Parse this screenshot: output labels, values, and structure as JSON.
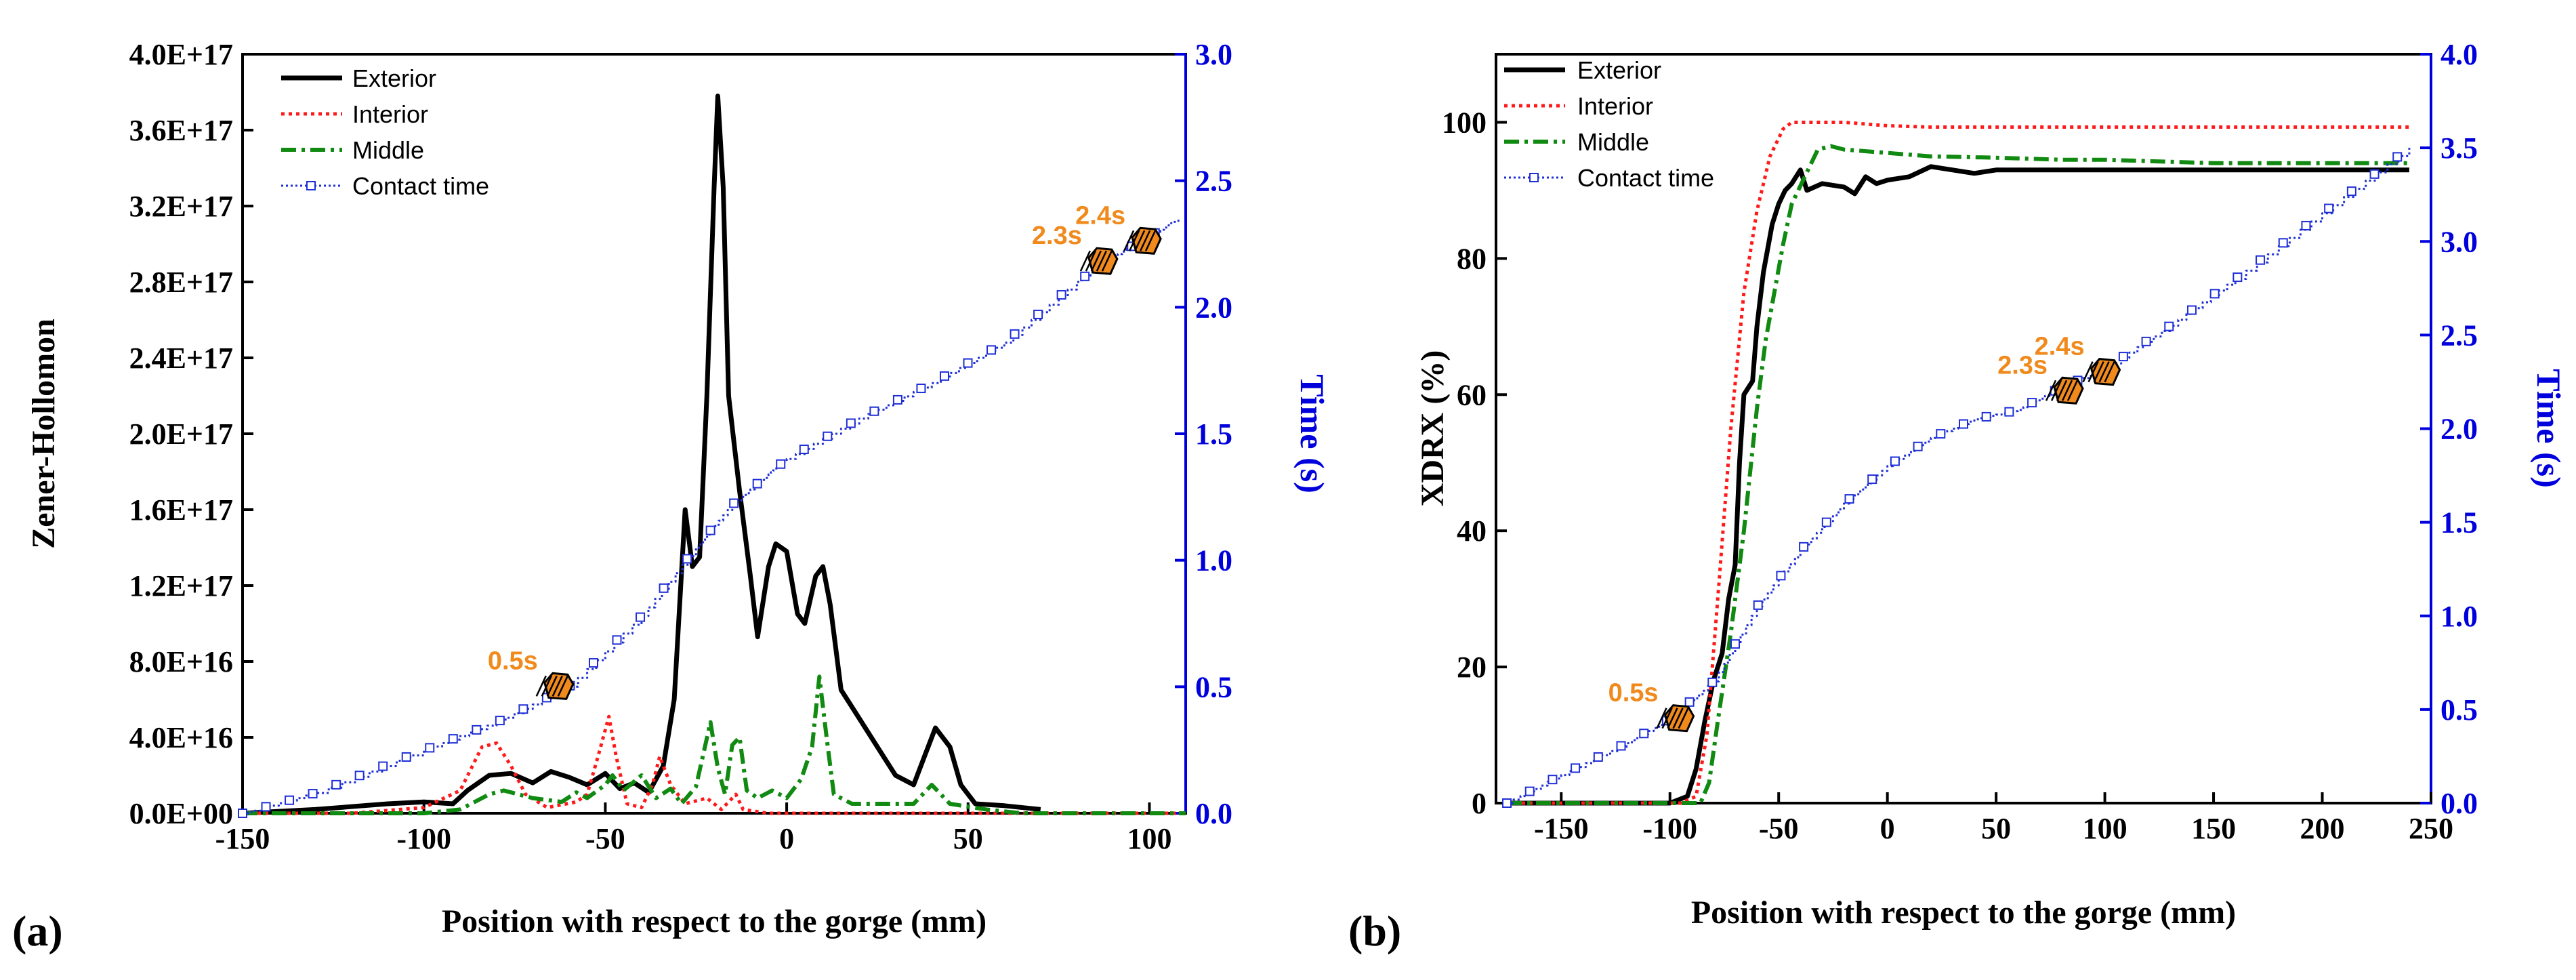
{
  "colors": {
    "exterior": "#000000",
    "interior": "#ff1a1a",
    "middle": "#108a10",
    "contact": "#1f2fd6",
    "right_axis": "#0000dd",
    "annotation": "#f08a1c"
  },
  "chart_data": [
    {
      "type": "line",
      "panel_label": "(a)",
      "title": "",
      "xlabel": "Position with respect to the gorge (mm)",
      "ylabel": "Zener-Hollomon",
      "y2label": "Time (s)",
      "xlim": [
        -150,
        110
      ],
      "ylim": [
        0,
        4e+17
      ],
      "y2lim": [
        0,
        3.0
      ],
      "xticks": [
        -150,
        -100,
        -50,
        0,
        50,
        100
      ],
      "xtick_labels": [
        "-150",
        "-100",
        "-50",
        "0",
        "50",
        "100"
      ],
      "yticks": [
        0,
        4e+16,
        8e+16,
        1.2e+17,
        1.6e+17,
        2e+17,
        2.4e+17,
        2.8e+17,
        3.2e+17,
        3.6e+17,
        4e+17
      ],
      "ytick_labels": [
        "0.0E+00",
        "4.0E+16",
        "8.0E+16",
        "1.2E+17",
        "1.6E+17",
        "2.0E+17",
        "2.4E+17",
        "2.8E+17",
        "3.2E+17",
        "3.6E+17",
        "4.0E+17"
      ],
      "y2ticks": [
        0,
        0.5,
        1.0,
        1.5,
        2.0,
        2.5,
        3.0
      ],
      "y2tick_labels": [
        "0.0",
        "0.5",
        "1.0",
        "1.5",
        "2.0",
        "2.5",
        "3.0"
      ],
      "grid": false,
      "legend_position": "top-left",
      "series": [
        {
          "name": "Exterior",
          "style": "solid",
          "axis": "left",
          "points": [
            [
              -150,
              0
            ],
            [
              -130,
              2000000000000000.0
            ],
            [
              -110,
              5000000000000000.0
            ],
            [
              -100,
              6000000000000000.0
            ],
            [
              -92,
              5000000000000000.0
            ],
            [
              -88,
              1.2e+16
            ],
            [
              -82,
              2e+16
            ],
            [
              -76,
              2.1e+16
            ],
            [
              -70,
              1.6e+16
            ],
            [
              -65,
              2.2e+16
            ],
            [
              -60,
              1.9e+16
            ],
            [
              -55,
              1.5e+16
            ],
            [
              -50,
              2.1e+16
            ],
            [
              -46,
              1.3e+16
            ],
            [
              -42,
              1.6e+16
            ],
            [
              -38,
              1.1e+16
            ],
            [
              -34,
              2.5e+16
            ],
            [
              -31,
              6e+16
            ],
            [
              -28,
              1.6e+17
            ],
            [
              -26,
              1.3e+17
            ],
            [
              -24,
              1.35e+17
            ],
            [
              -22,
              2.2e+17
            ],
            [
              -20,
              3.3e+17
            ],
            [
              -19,
              3.78e+17
            ],
            [
              -17.5,
              3.3e+17
            ],
            [
              -16,
              2.2e+17
            ],
            [
              -13,
              1.7e+17
            ],
            [
              -10,
              1.25e+17
            ],
            [
              -8,
              9.3e+16
            ],
            [
              -5,
              1.3e+17
            ],
            [
              -3,
              1.42e+17
            ],
            [
              0,
              1.38e+17
            ],
            [
              3,
              1.05e+17
            ],
            [
              5,
              1e+17
            ],
            [
              8,
              1.25e+17
            ],
            [
              10,
              1.3e+17
            ],
            [
              12,
              1.1e+17
            ],
            [
              15,
              6.5e+16
            ],
            [
              20,
              5e+16
            ],
            [
              25,
              3.5e+16
            ],
            [
              30,
              2e+16
            ],
            [
              35,
              1.5e+16
            ],
            [
              38,
              3e+16
            ],
            [
              41,
              4.5e+16
            ],
            [
              45,
              3.5e+16
            ],
            [
              48,
              1.5e+16
            ],
            [
              52,
              5000000000000000.0
            ],
            [
              60,
              4000000000000000.0
            ],
            [
              70,
              2000000000000000.0
            ]
          ]
        },
        {
          "name": "Interior",
          "style": "dotted",
          "axis": "left",
          "points": [
            [
              -150,
              0
            ],
            [
              -120,
              0
            ],
            [
              -100,
              3000000000000000.0
            ],
            [
              -90,
              1.2e+16
            ],
            [
              -84,
              3.5e+16
            ],
            [
              -80,
              3.7e+16
            ],
            [
              -76,
              2.5e+16
            ],
            [
              -72,
              1e+16
            ],
            [
              -66,
              3000000000000000.0
            ],
            [
              -58,
              6000000000000000.0
            ],
            [
              -55,
              1e+16
            ],
            [
              -52,
              3e+16
            ],
            [
              -49,
              5.1e+16
            ],
            [
              -47,
              3e+16
            ],
            [
              -44,
              5000000000000000.0
            ],
            [
              -40,
              3000000000000000.0
            ],
            [
              -37,
              1.5e+16
            ],
            [
              -35,
              3e+16
            ],
            [
              -32,
              1.5e+16
            ],
            [
              -28,
              5000000000000000.0
            ],
            [
              -22,
              8000000000000000.0
            ],
            [
              -18,
              2000000000000000.0
            ],
            [
              -14,
              1e+16
            ],
            [
              -12,
              2000000000000000.0
            ],
            [
              -5,
              0
            ],
            [
              20,
              0
            ],
            [
              110,
              0
            ]
          ]
        },
        {
          "name": "Middle",
          "style": "dashdot",
          "axis": "left",
          "points": [
            [
              -150,
              0
            ],
            [
              -100,
              0
            ],
            [
              -90,
              2000000000000000.0
            ],
            [
              -82,
              1e+16
            ],
            [
              -78,
              1.2e+16
            ],
            [
              -70,
              8000000000000000.0
            ],
            [
              -62,
              6000000000000000.0
            ],
            [
              -58,
              1.1e+16
            ],
            [
              -55,
              8000000000000000.0
            ],
            [
              -50,
              1.5e+16
            ],
            [
              -48,
              2e+16
            ],
            [
              -45,
              1.2e+16
            ],
            [
              -40,
              2e+16
            ],
            [
              -36,
              8000000000000000.0
            ],
            [
              -32,
              1.3e+16
            ],
            [
              -29,
              5000000000000000.0
            ],
            [
              -25,
              1.4e+16
            ],
            [
              -21,
              4.8e+16
            ],
            [
              -19,
              2.4e+16
            ],
            [
              -17,
              1e+16
            ],
            [
              -15,
              3.6e+16
            ],
            [
              -13,
              4e+16
            ],
            [
              -11,
              1.2e+16
            ],
            [
              -8,
              8000000000000000.0
            ],
            [
              -4,
              1.2e+16
            ],
            [
              0,
              8000000000000000.0
            ],
            [
              4,
              1.8e+16
            ],
            [
              7,
              3.5e+16
            ],
            [
              9,
              7.2e+16
            ],
            [
              11,
              4e+16
            ],
            [
              13,
              1e+16
            ],
            [
              18,
              5000000000000000.0
            ],
            [
              25,
              5000000000000000.0
            ],
            [
              35,
              5000000000000000.0
            ],
            [
              40,
              1.5e+16
            ],
            [
              45,
              5000000000000000.0
            ],
            [
              55,
              2000000000000000.0
            ],
            [
              65,
              0
            ],
            [
              110,
              0
            ]
          ]
        },
        {
          "name": "Contact time",
          "style": "step-markers",
          "axis": "right",
          "points": [
            [
              -150,
              0
            ],
            [
              -130,
              0.08
            ],
            [
              -100,
              0.25
            ],
            [
              -80,
              0.36
            ],
            [
              -60,
              0.5
            ],
            [
              -40,
              0.78
            ],
            [
              -25,
              1.05
            ],
            [
              -15,
              1.22
            ],
            [
              -5,
              1.34
            ],
            [
              0,
              1.4
            ],
            [
              20,
              1.56
            ],
            [
              40,
              1.7
            ],
            [
              60,
              1.86
            ],
            [
              80,
              2.1
            ],
            [
              90,
              2.2
            ],
            [
              100,
              2.28
            ],
            [
              108,
              2.35
            ]
          ]
        }
      ],
      "annotations": [
        {
          "text": "0.5s",
          "x": -63,
          "y2": 0.5
        },
        {
          "text": "2.3s",
          "x": 87,
          "y2": 2.18
        },
        {
          "text": "2.4s",
          "x": 99,
          "y2": 2.26
        }
      ]
    },
    {
      "type": "line",
      "panel_label": "(b)",
      "title": "",
      "xlabel": "Position with respect to the gorge (mm)",
      "ylabel": "XDRX (%)",
      "y2label": "Time (s)",
      "xlim": [
        -180,
        250
      ],
      "ylim": [
        0,
        110
      ],
      "y2lim": [
        0,
        4.0
      ],
      "xticks": [
        -150,
        -100,
        -50,
        0,
        50,
        100,
        150,
        200,
        250
      ],
      "xtick_labels": [
        "-150",
        "-100",
        "-50",
        "0",
        "50",
        "100",
        "150",
        "200",
        "250"
      ],
      "yticks": [
        0,
        20,
        40,
        60,
        80,
        100
      ],
      "ytick_labels": [
        "0",
        "20",
        "40",
        "60",
        "80",
        "100"
      ],
      "y2ticks": [
        0,
        0.5,
        1.0,
        1.5,
        2.0,
        2.5,
        3.0,
        3.5,
        4.0
      ],
      "y2tick_labels": [
        "0.0",
        "0.5",
        "1.0",
        "1.5",
        "2.0",
        "2.5",
        "3.0",
        "3.5",
        "4.0"
      ],
      "grid": false,
      "legend_position": "top-left",
      "series": [
        {
          "name": "Exterior",
          "style": "solid",
          "axis": "left",
          "points": [
            [
              -175,
              0
            ],
            [
              -100,
              0
            ],
            [
              -92,
              1
            ],
            [
              -88,
              5
            ],
            [
              -84,
              12
            ],
            [
              -80,
              18
            ],
            [
              -76,
              22
            ],
            [
              -73,
              30
            ],
            [
              -70,
              35
            ],
            [
              -68,
              50
            ],
            [
              -66,
              60
            ],
            [
              -62,
              62
            ],
            [
              -60,
              70
            ],
            [
              -57,
              78
            ],
            [
              -53,
              85
            ],
            [
              -50,
              88
            ],
            [
              -47,
              90
            ],
            [
              -44,
              91
            ],
            [
              -42,
              92
            ],
            [
              -40,
              93
            ],
            [
              -37,
              90
            ],
            [
              -30,
              91
            ],
            [
              -20,
              90.5
            ],
            [
              -15,
              89.5
            ],
            [
              -10,
              92
            ],
            [
              -5,
              91
            ],
            [
              0,
              91.5
            ],
            [
              10,
              92
            ],
            [
              20,
              93.5
            ],
            [
              30,
              93
            ],
            [
              40,
              92.5
            ],
            [
              50,
              93
            ],
            [
              100,
              93
            ],
            [
              240,
              93
            ]
          ]
        },
        {
          "name": "Interior",
          "style": "dotted",
          "axis": "left",
          "points": [
            [
              -175,
              0
            ],
            [
              -95,
              0
            ],
            [
              -88,
              1
            ],
            [
              -83,
              10
            ],
            [
              -78,
              30
            ],
            [
              -72,
              55
            ],
            [
              -66,
              75
            ],
            [
              -60,
              87
            ],
            [
              -54,
              95
            ],
            [
              -48,
              99
            ],
            [
              -44,
              100
            ],
            [
              -20,
              100
            ],
            [
              0,
              99.5
            ],
            [
              20,
              99.3
            ],
            [
              100,
              99.3
            ],
            [
              240,
              99.3
            ]
          ]
        },
        {
          "name": "Middle",
          "style": "dashdot",
          "axis": "left",
          "points": [
            [
              -175,
              0
            ],
            [
              -86,
              0
            ],
            [
              -82,
              3
            ],
            [
              -78,
              12
            ],
            [
              -72,
              25
            ],
            [
              -66,
              40
            ],
            [
              -60,
              58
            ],
            [
              -56,
              68
            ],
            [
              -52,
              75
            ],
            [
              -48,
              82
            ],
            [
              -44,
              88
            ],
            [
              -38,
              92
            ],
            [
              -32,
              96
            ],
            [
              -26,
              96.5
            ],
            [
              -20,
              96
            ],
            [
              0,
              95.5
            ],
            [
              20,
              95
            ],
            [
              50,
              94.8
            ],
            [
              80,
              94.5
            ],
            [
              100,
              94.5
            ],
            [
              150,
              94
            ],
            [
              200,
              94
            ],
            [
              240,
              94
            ]
          ]
        },
        {
          "name": "Contact time",
          "style": "step-markers",
          "axis": "right",
          "points": [
            [
              -175,
              0
            ],
            [
              -150,
              0.15
            ],
            [
              -120,
              0.32
            ],
            [
              -100,
              0.45
            ],
            [
              -80,
              0.65
            ],
            [
              -60,
              1.05
            ],
            [
              -40,
              1.35
            ],
            [
              -20,
              1.6
            ],
            [
              0,
              1.8
            ],
            [
              20,
              1.95
            ],
            [
              40,
              2.05
            ],
            [
              60,
              2.1
            ],
            [
              80,
              2.22
            ],
            [
              100,
              2.32
            ],
            [
              130,
              2.55
            ],
            [
              160,
              2.8
            ],
            [
              200,
              3.15
            ],
            [
              240,
              3.5
            ]
          ]
        }
      ],
      "annotations": [
        {
          "text": "0.5s",
          "x": -96,
          "y2": 0.45
        },
        {
          "text": "2.3s",
          "x": 83,
          "y2": 2.2
        },
        {
          "text": "2.4s",
          "x": 100,
          "y2": 2.3
        }
      ]
    }
  ]
}
